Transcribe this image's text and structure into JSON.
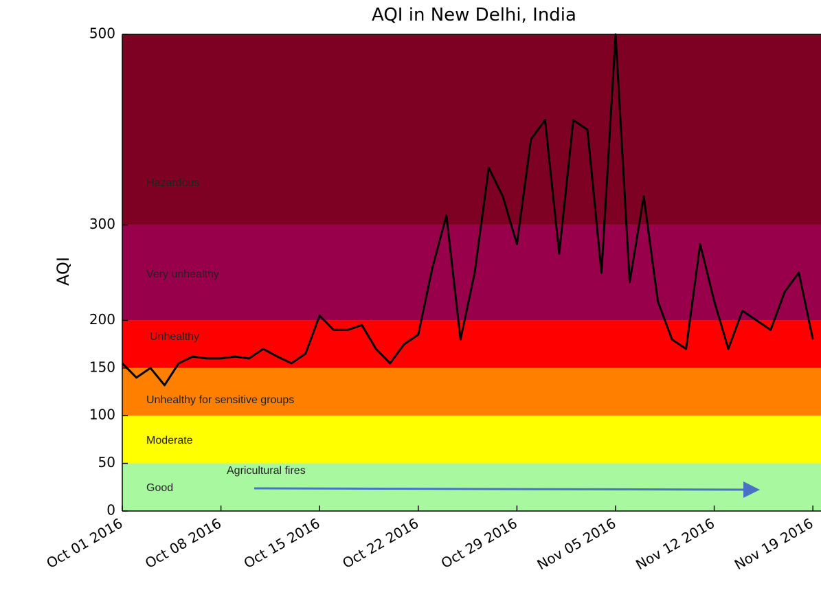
{
  "chart_data": {
    "type": "line",
    "title": "AQI in New Delhi, India",
    "y_label": "AQI",
    "ylim": [
      0,
      500
    ],
    "yticks": [
      0,
      50,
      100,
      150,
      200,
      300,
      500
    ],
    "xlim": [
      "2016-10-01",
      "2016-11-20"
    ],
    "xticks": [
      {
        "value": "2016-10-01",
        "label": "Oct 01 2016"
      },
      {
        "value": "2016-10-08",
        "label": "Oct 08 2016"
      },
      {
        "value": "2016-10-15",
        "label": "Oct 15 2016"
      },
      {
        "value": "2016-10-22",
        "label": "Oct 22 2016"
      },
      {
        "value": "2016-10-29",
        "label": "Oct 29 2016"
      },
      {
        "value": "2016-11-05",
        "label": "Nov 05 2016"
      },
      {
        "value": "2016-11-12",
        "label": "Nov 12 2016"
      },
      {
        "value": "2016-11-19",
        "label": "Nov 19 2016"
      }
    ],
    "bands": [
      {
        "name": "Good",
        "low": 0,
        "high": 50,
        "color": "#a8f8a0"
      },
      {
        "name": "Moderate",
        "low": 50,
        "high": 100,
        "color": "#ffff00"
      },
      {
        "name": "Unhealthy for sensitive groups",
        "low": 100,
        "high": 150,
        "color": "#ff7f00"
      },
      {
        "name": "Unhealthy",
        "low": 150,
        "high": 200,
        "color": "#ff0000"
      },
      {
        "name": "Very unhealthy",
        "low": 200,
        "high": 300,
        "color": "#99004c"
      },
      {
        "name": "Hazardous",
        "low": 300,
        "high": 500,
        "color": "#7e0023"
      }
    ],
    "annotation": "Agricultural fires",
    "x": [
      "2016-10-01",
      "2016-10-02",
      "2016-10-03",
      "2016-10-04",
      "2016-10-05",
      "2016-10-06",
      "2016-10-07",
      "2016-10-08",
      "2016-10-09",
      "2016-10-10",
      "2016-10-11",
      "2016-10-12",
      "2016-10-13",
      "2016-10-14",
      "2016-10-15",
      "2016-10-16",
      "2016-10-17",
      "2016-10-18",
      "2016-10-19",
      "2016-10-20",
      "2016-10-21",
      "2016-10-22",
      "2016-10-23",
      "2016-10-24",
      "2016-10-25",
      "2016-10-26",
      "2016-10-27",
      "2016-10-28",
      "2016-10-29",
      "2016-10-30",
      "2016-10-31",
      "2016-11-01",
      "2016-11-02",
      "2016-11-03",
      "2016-11-04",
      "2016-11-05",
      "2016-11-06",
      "2016-11-07",
      "2016-11-08",
      "2016-11-09",
      "2016-11-10",
      "2016-11-11",
      "2016-11-12",
      "2016-11-13",
      "2016-11-14",
      "2016-11-15",
      "2016-11-16",
      "2016-11-17",
      "2016-11-18",
      "2016-11-19"
    ],
    "values": [
      155,
      140,
      150,
      132,
      155,
      162,
      160,
      160,
      162,
      160,
      170,
      162,
      155,
      165,
      205,
      190,
      190,
      195,
      170,
      155,
      175,
      185,
      255,
      310,
      180,
      250,
      360,
      330,
      280,
      390,
      410,
      270,
      410,
      400,
      250,
      500,
      240,
      330,
      220,
      180,
      170,
      280,
      220,
      170,
      210,
      200,
      190,
      230,
      250,
      180
    ],
    "color": "#000000"
  }
}
